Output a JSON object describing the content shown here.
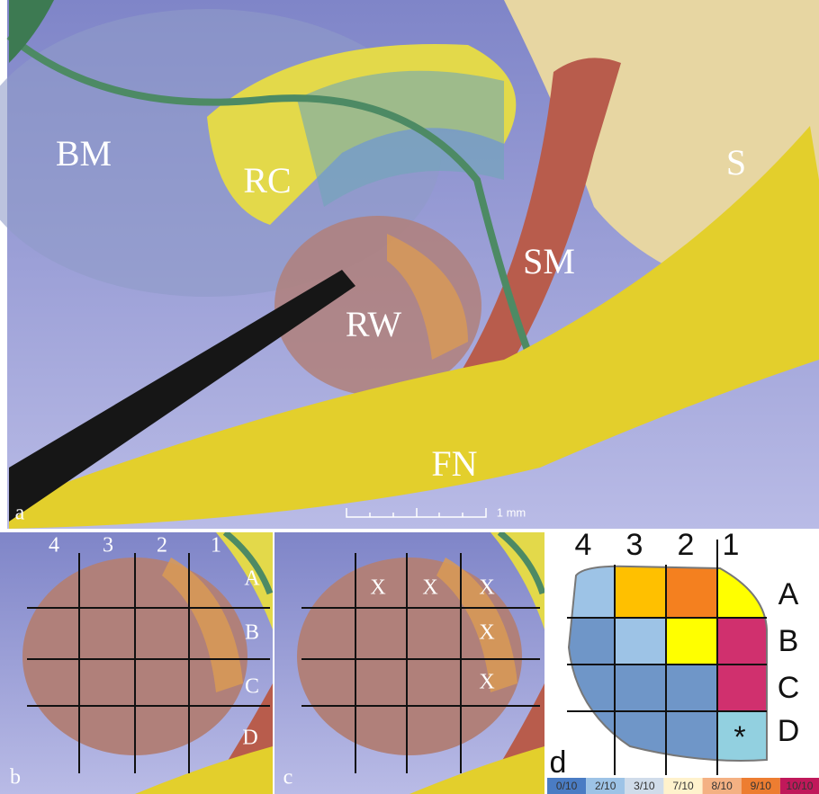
{
  "panel_a": {
    "label": "a",
    "structures": [
      "BM",
      "RC",
      "SM",
      "S",
      "RW",
      "FN"
    ],
    "scale_bar": "1 mm"
  },
  "panel_b": {
    "label": "b",
    "columns": [
      "4",
      "3",
      "2",
      "1"
    ],
    "rows": [
      "A",
      "B",
      "C",
      "D"
    ]
  },
  "panel_c": {
    "label": "c",
    "marks": [
      "X",
      "X",
      "X",
      "X",
      "X"
    ]
  },
  "panel_d": {
    "label": "d",
    "columns": [
      "4",
      "3",
      "2",
      "1"
    ],
    "rows": [
      "A",
      "B",
      "C",
      "D"
    ],
    "marker": "*",
    "legend": [
      {
        "label": "0/10",
        "color": "#4a7cc4"
      },
      {
        "label": "2/10",
        "color": "#9dc3e6"
      },
      {
        "label": "3/10",
        "color": "#d0dcea"
      },
      {
        "label": "7/10",
        "color": "#fff2cc"
      },
      {
        "label": "8/10",
        "color": "#f4b183"
      },
      {
        "label": "9/10",
        "color": "#ed7d31"
      },
      {
        "label": "10/10",
        "color": "#c0185a"
      }
    ]
  }
}
